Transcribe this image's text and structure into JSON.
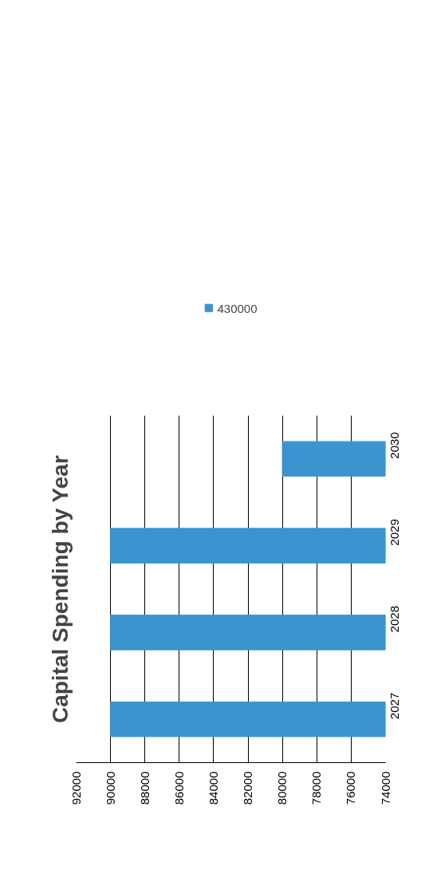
{
  "chart_data": {
    "type": "bar",
    "orientation": "horizontal",
    "title": "Capital Spending by Year",
    "categories": [
      "2030",
      "2029",
      "2028",
      "2027"
    ],
    "series": [
      {
        "name": "430000",
        "color": "#3a94d0",
        "values": [
          80000,
          90000,
          90000,
          90000
        ]
      }
    ],
    "xlim": [
      92000,
      74000
    ],
    "xticks": [
      92000,
      90000,
      88000,
      86000,
      84000,
      82000,
      80000,
      78000,
      76000,
      74000
    ],
    "grid": "x",
    "legend": "top"
  }
}
